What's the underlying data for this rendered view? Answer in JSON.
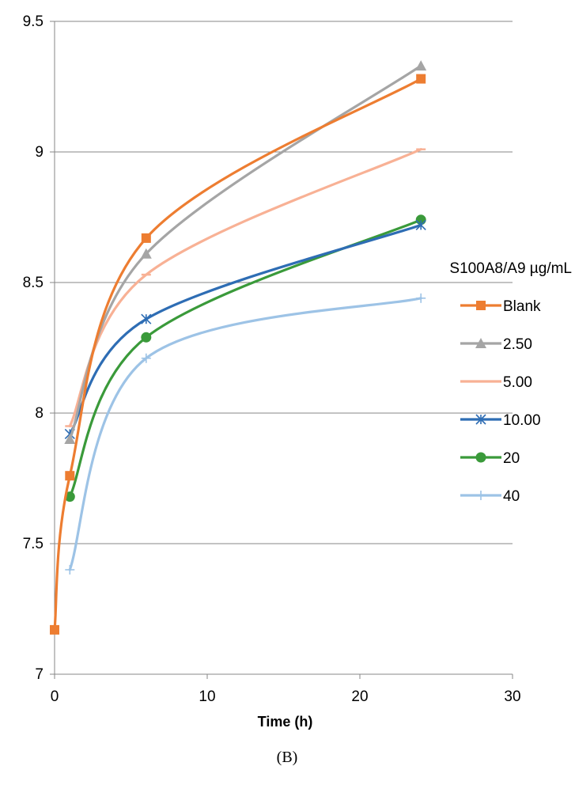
{
  "caption": "(B)",
  "chart_data": {
    "type": "line",
    "title": "",
    "xlabel": "Time (h)",
    "ylabel": "",
    "xlim": [
      0,
      30
    ],
    "ylim": [
      7,
      9.5
    ],
    "xticks": [
      0,
      10,
      20,
      30
    ],
    "yticks": [
      7,
      7.5,
      8,
      8.5,
      9,
      9.5
    ],
    "grid": "horizontal",
    "legend_title": "S100A8/A9 µg/mL",
    "legend_position": "right",
    "series": [
      {
        "name": "Blank",
        "color": "#ED7D31",
        "marker": "square",
        "x": [
          0,
          1,
          6,
          24
        ],
        "y": [
          7.17,
          7.76,
          8.67,
          9.28
        ]
      },
      {
        "name": "2.50",
        "color": "#A5A5A5",
        "marker": "triangle",
        "x": [
          1,
          6,
          24
        ],
        "y": [
          7.9,
          8.61,
          9.33
        ]
      },
      {
        "name": "5.00",
        "color": "#F8B195",
        "marker": "dash",
        "x": [
          1,
          6,
          24
        ],
        "y": [
          7.95,
          8.53,
          9.01
        ]
      },
      {
        "name": "10.00",
        "color": "#2E6DB4",
        "marker": "star",
        "x": [
          1,
          6,
          24
        ],
        "y": [
          7.92,
          8.36,
          8.72
        ]
      },
      {
        "name": "20",
        "color": "#3A9A3A",
        "marker": "circle",
        "x": [
          1,
          6,
          24
        ],
        "y": [
          7.68,
          8.29,
          8.74
        ]
      },
      {
        "name": "40",
        "color": "#9DC3E6",
        "marker": "plus",
        "x": [
          1,
          6,
          24
        ],
        "y": [
          7.4,
          8.21,
          8.44
        ]
      }
    ]
  }
}
